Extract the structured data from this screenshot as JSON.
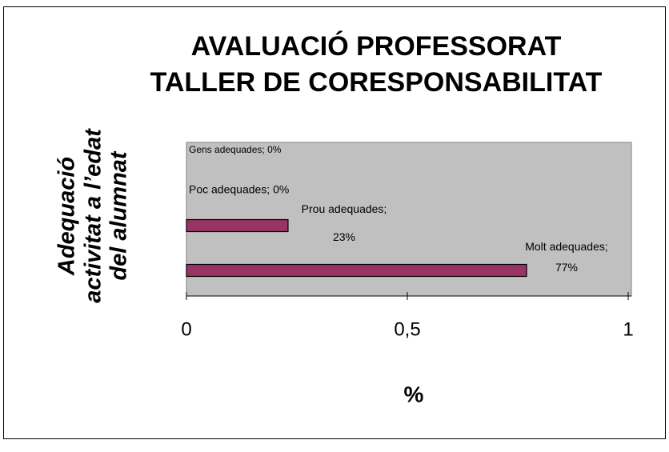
{
  "chart_data": {
    "type": "bar",
    "orientation": "horizontal",
    "title": [
      "AVALUACIÓ PROFESSORAT",
      "TALLER DE CORESPONSABILITAT"
    ],
    "y_label": [
      "Adequació",
      "activitat a l’edat",
      "del alumnat"
    ],
    "x_label": "%",
    "categories": [
      "Gens adequades",
      "Poc adequades",
      "Prou adequades",
      "Molt adequades"
    ],
    "values": [
      0,
      0,
      0.23,
      0.77
    ],
    "value_labels": [
      "Gens adequades; 0%",
      "Poc adequades; 0%",
      "Prou adequades; 23%",
      "Molt adequades; 77%"
    ],
    "color": "#993366",
    "xlim": [
      0,
      1
    ],
    "xticks": [
      0,
      {
        "value": 0.5,
        "label": "0,5"
      },
      1
    ]
  }
}
